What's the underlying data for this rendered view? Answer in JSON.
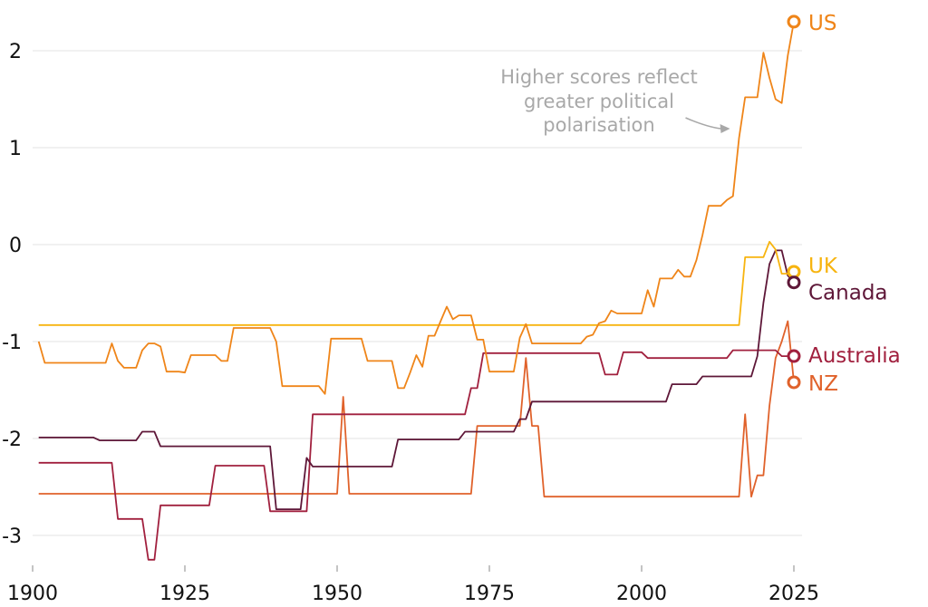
{
  "chart_data": {
    "type": "line",
    "title": "",
    "xlabel": "",
    "ylabel": "",
    "xlim": [
      1900,
      2025
    ],
    "ylim": [
      -3.2,
      2.5
    ],
    "grid": true,
    "x_ticks": [
      1900,
      1925,
      1950,
      1975,
      2000,
      2025
    ],
    "x_tick_labels": [
      "1900",
      "1925",
      "1950",
      "1975",
      "2000",
      "2025"
    ],
    "y_ticks": [
      2,
      1,
      0,
      -1,
      -2,
      -3
    ],
    "y_tick_labels": [
      "2",
      "1",
      "0",
      "-1",
      "-2",
      "-3"
    ],
    "annotation": {
      "lines": [
        "Higher scores reflect",
        "greater political",
        "polarisation"
      ],
      "target_year": 2016,
      "target_value": 1.2
    },
    "legend_placement": "line-end labels (right)",
    "series": [
      {
        "name": "US",
        "color": "#ef8519",
        "points": [
          [
            1901,
            -1.0
          ],
          [
            1902,
            -1.22
          ],
          [
            1912,
            -1.22
          ],
          [
            1913,
            -1.02
          ],
          [
            1914,
            -1.2
          ],
          [
            1915,
            -1.27
          ],
          [
            1917,
            -1.27
          ],
          [
            1918,
            -1.09
          ],
          [
            1919,
            -1.02
          ],
          [
            1920,
            -1.02
          ],
          [
            1921,
            -1.05
          ],
          [
            1922,
            -1.31
          ],
          [
            1924,
            -1.31
          ],
          [
            1925,
            -1.32
          ],
          [
            1926,
            -1.14
          ],
          [
            1930,
            -1.14
          ],
          [
            1931,
            -1.2
          ],
          [
            1932,
            -1.2
          ],
          [
            1933,
            -0.86
          ],
          [
            1939,
            -0.86
          ],
          [
            1940,
            -1.0
          ],
          [
            1941,
            -1.46
          ],
          [
            1947,
            -1.46
          ],
          [
            1948,
            -1.54
          ],
          [
            1949,
            -0.97
          ],
          [
            1954,
            -0.97
          ],
          [
            1955,
            -1.2
          ],
          [
            1959,
            -1.2
          ],
          [
            1960,
            -1.48
          ],
          [
            1961,
            -1.48
          ],
          [
            1962,
            -1.32
          ],
          [
            1963,
            -1.14
          ],
          [
            1964,
            -1.26
          ],
          [
            1965,
            -0.94
          ],
          [
            1966,
            -0.94
          ],
          [
            1967,
            -0.79
          ],
          [
            1968,
            -0.64
          ],
          [
            1969,
            -0.77
          ],
          [
            1970,
            -0.73
          ],
          [
            1972,
            -0.73
          ],
          [
            1973,
            -0.98
          ],
          [
            1974,
            -0.98
          ],
          [
            1975,
            -1.31
          ],
          [
            1979,
            -1.31
          ],
          [
            1980,
            -0.96
          ],
          [
            1981,
            -0.82
          ],
          [
            1982,
            -1.02
          ],
          [
            1990,
            -1.02
          ],
          [
            1991,
            -0.95
          ],
          [
            1992,
            -0.93
          ],
          [
            1993,
            -0.81
          ],
          [
            1994,
            -0.79
          ],
          [
            1995,
            -0.68
          ],
          [
            1996,
            -0.71
          ],
          [
            2000,
            -0.71
          ],
          [
            2001,
            -0.47
          ],
          [
            2002,
            -0.64
          ],
          [
            2003,
            -0.35
          ],
          [
            2005,
            -0.35
          ],
          [
            2006,
            -0.26
          ],
          [
            2007,
            -0.33
          ],
          [
            2008,
            -0.33
          ],
          [
            2009,
            -0.16
          ],
          [
            2010,
            0.1
          ],
          [
            2011,
            0.4
          ],
          [
            2013,
            0.4
          ],
          [
            2014,
            0.46
          ],
          [
            2015,
            0.5
          ],
          [
            2016,
            1.1
          ],
          [
            2017,
            1.52
          ],
          [
            2019,
            1.52
          ],
          [
            2020,
            1.98
          ],
          [
            2021,
            1.72
          ],
          [
            2022,
            1.5
          ],
          [
            2023,
            1.46
          ],
          [
            2024,
            1.95
          ],
          [
            2025,
            2.3
          ]
        ]
      },
      {
        "name": "UK",
        "color": "#f7b40f",
        "points": [
          [
            1901,
            -0.83
          ],
          [
            2016,
            -0.83
          ],
          [
            2017,
            -0.13
          ],
          [
            2020,
            -0.13
          ],
          [
            2021,
            0.03
          ],
          [
            2022,
            -0.05
          ],
          [
            2023,
            -0.3
          ],
          [
            2024,
            -0.3
          ],
          [
            2025,
            -0.28
          ]
        ]
      },
      {
        "name": "Canada",
        "color": "#5e1738",
        "points": [
          [
            1901,
            -1.99
          ],
          [
            1910,
            -1.99
          ],
          [
            1911,
            -2.02
          ],
          [
            1917,
            -2.02
          ],
          [
            1918,
            -1.93
          ],
          [
            1920,
            -1.93
          ],
          [
            1921,
            -2.08
          ],
          [
            1939,
            -2.08
          ],
          [
            1940,
            -2.73
          ],
          [
            1944,
            -2.73
          ],
          [
            1945,
            -2.2
          ],
          [
            1946,
            -2.29
          ],
          [
            1959,
            -2.29
          ],
          [
            1960,
            -2.01
          ],
          [
            1970,
            -2.01
          ],
          [
            1971,
            -1.93
          ],
          [
            1979,
            -1.93
          ],
          [
            1980,
            -1.8
          ],
          [
            1981,
            -1.8
          ],
          [
            1982,
            -1.62
          ],
          [
            2004,
            -1.62
          ],
          [
            2005,
            -1.44
          ],
          [
            2009,
            -1.44
          ],
          [
            2010,
            -1.36
          ],
          [
            2018,
            -1.36
          ],
          [
            2019,
            -1.15
          ],
          [
            2020,
            -0.6
          ],
          [
            2021,
            -0.2
          ],
          [
            2022,
            -0.06
          ],
          [
            2023,
            -0.06
          ],
          [
            2024,
            -0.32
          ],
          [
            2025,
            -0.39
          ]
        ]
      },
      {
        "name": "Australia",
        "color": "#a1203e",
        "points": [
          [
            1901,
            -2.25
          ],
          [
            1913,
            -2.25
          ],
          [
            1914,
            -2.83
          ],
          [
            1918,
            -2.83
          ],
          [
            1919,
            -3.25
          ],
          [
            1920,
            -3.25
          ],
          [
            1921,
            -2.69
          ],
          [
            1929,
            -2.69
          ],
          [
            1930,
            -2.28
          ],
          [
            1938,
            -2.28
          ],
          [
            1939,
            -2.75
          ],
          [
            1945,
            -2.75
          ],
          [
            1946,
            -1.75
          ],
          [
            1971,
            -1.75
          ],
          [
            1972,
            -1.48
          ],
          [
            1973,
            -1.48
          ],
          [
            1974,
            -1.12
          ],
          [
            1993,
            -1.12
          ],
          [
            1994,
            -1.34
          ],
          [
            1996,
            -1.34
          ],
          [
            1997,
            -1.11
          ],
          [
            2000,
            -1.11
          ],
          [
            2001,
            -1.17
          ],
          [
            2014,
            -1.17
          ],
          [
            2015,
            -1.09
          ],
          [
            2022,
            -1.09
          ],
          [
            2023,
            -1.15
          ],
          [
            2025,
            -1.15
          ]
        ]
      },
      {
        "name": "NZ",
        "color": "#e0622b",
        "points": [
          [
            1901,
            -2.57
          ],
          [
            1950,
            -2.57
          ],
          [
            1951,
            -1.57
          ],
          [
            1952,
            -2.57
          ],
          [
            1972,
            -2.57
          ],
          [
            1973,
            -1.87
          ],
          [
            1980,
            -1.87
          ],
          [
            1981,
            -1.17
          ],
          [
            1982,
            -1.87
          ],
          [
            1983,
            -1.87
          ],
          [
            1984,
            -2.6
          ],
          [
            2016,
            -2.6
          ],
          [
            2017,
            -1.75
          ],
          [
            2018,
            -2.6
          ],
          [
            2019,
            -2.38
          ],
          [
            2020,
            -2.38
          ],
          [
            2021,
            -1.66
          ],
          [
            2022,
            -1.17
          ],
          [
            2023,
            -1.0
          ],
          [
            2024,
            -0.79
          ],
          [
            2025,
            -1.42
          ]
        ]
      }
    ]
  }
}
